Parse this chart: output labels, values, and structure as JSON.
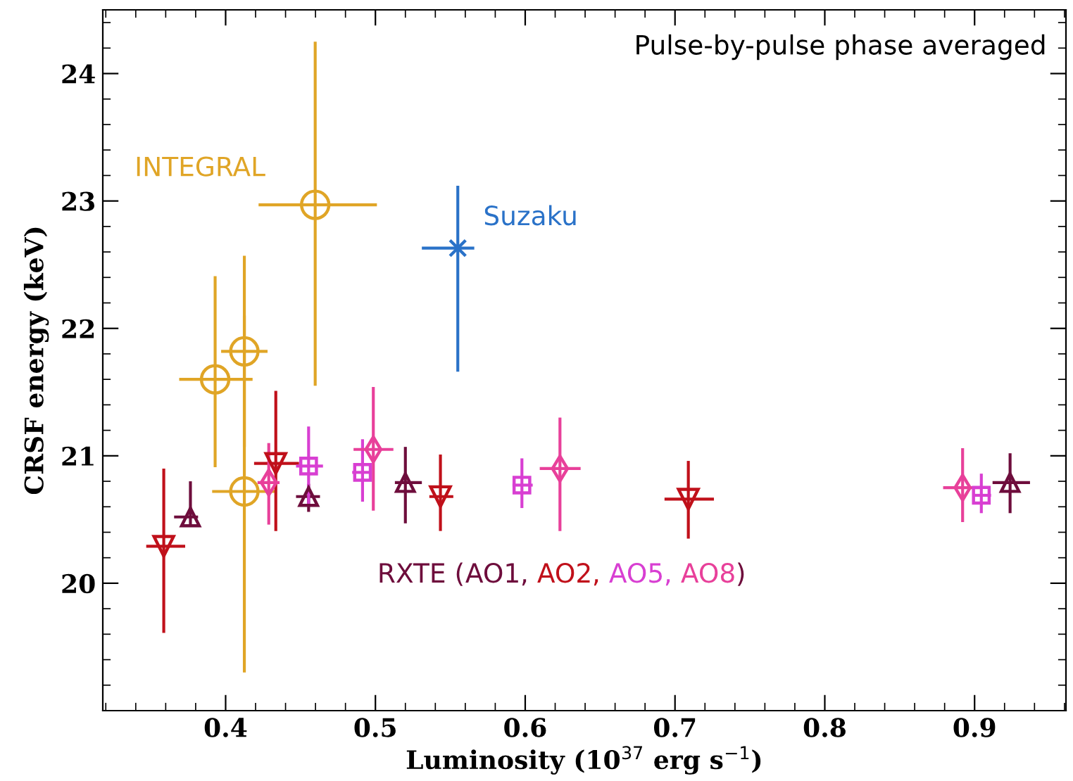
{
  "chart_data": {
    "type": "scatter",
    "xlabel": "Luminosity (10$^{37}$ erg s$^{−1}$)",
    "ylabel": "CRSF energy (keV)",
    "xlim": [
      0.318,
      0.961
    ],
    "ylim": [
      19.0,
      24.5
    ],
    "xticks": [
      0.4,
      0.5,
      0.6,
      0.7,
      0.8,
      0.9
    ],
    "yticks": [
      20,
      21,
      22,
      23,
      24
    ],
    "grid": false,
    "legend": false,
    "annotations": [
      "Pulse-by-pulse phase averaged",
      "RXTE (",
      ", ",
      ")"
    ],
    "series": [
      {
        "name": "INTEGRAL",
        "color": "#e0a526",
        "marker": "circle",
        "x": [
          0.393,
          0.4125,
          0.4598,
          0.4125
        ],
        "values": [
          21.6,
          21.82,
          22.97,
          20.72
        ],
        "xerrors": [
          [
            0.369,
            0.418
          ],
          [
            0.397,
            0.428
          ],
          [
            0.422,
            0.501
          ],
          [
            0.391,
            0.434
          ]
        ],
        "errors": [
          [
            20.91,
            22.41
          ],
          [
            21.07,
            22.57
          ],
          [
            21.55,
            24.25
          ],
          [
            19.3,
            22.1
          ]
        ]
      },
      {
        "name": "Suzaku",
        "color": "#2a72c8",
        "marker": "cross",
        "x": [
          0.555
        ],
        "values": [
          22.63
        ],
        "xerrors": [
          [
            0.531,
            0.566
          ]
        ],
        "errors": [
          [
            21.66,
            23.12
          ]
        ]
      },
      {
        "name": "AO1",
        "color": "#6e0d3c",
        "marker": "triangle",
        "x": [
          0.3765,
          0.4554,
          0.52,
          0.9237
        ],
        "values": [
          20.52,
          20.68,
          20.79,
          20.79
        ],
        "xerrors": [
          [
            0.3656,
            0.3816
          ],
          [
            0.447,
            0.463
          ],
          [
            0.513,
            0.531
          ],
          [
            0.912,
            0.937
          ]
        ],
        "errors": [
          [
            20.46,
            20.8
          ],
          [
            20.56,
            20.78
          ],
          [
            20.47,
            21.07
          ],
          [
            20.55,
            21.02
          ]
        ]
      },
      {
        "name": "AO2",
        "color": "#c0101a",
        "marker": "triangle_down",
        "x": [
          0.3587,
          0.4335,
          0.5434,
          0.7089
        ],
        "values": [
          20.29,
          20.94,
          20.68,
          20.66
        ],
        "xerrors": [
          [
            0.347,
            0.373
          ],
          [
            0.419,
            0.449
          ],
          [
            0.536,
            0.552
          ],
          [
            0.693,
            0.726
          ]
        ],
        "errors": [
          [
            19.61,
            20.9
          ],
          [
            20.41,
            21.51
          ],
          [
            20.41,
            21.01
          ],
          [
            20.35,
            20.96
          ]
        ]
      },
      {
        "name": "AO5",
        "color": "#d83fd2",
        "marker": "square",
        "x": [
          0.4554,
          0.4914,
          0.5978,
          0.9045
        ],
        "values": [
          20.92,
          20.87,
          20.77,
          20.69
        ],
        "xerrors": [
          [
            0.447,
            0.465
          ],
          [
            0.4845,
            0.497
          ],
          [
            0.5915,
            0.605
          ],
          [
            0.8986,
            0.911
          ]
        ],
        "errors": [
          [
            20.6,
            21.23
          ],
          [
            20.64,
            21.13
          ],
          [
            20.59,
            20.98
          ],
          [
            20.55,
            20.86
          ]
        ]
      },
      {
        "name": "AO8",
        "color": "#e8409a",
        "marker": "diamond",
        "x": [
          0.4288,
          0.4986,
          0.6232,
          0.892
        ],
        "values": [
          20.79,
          21.05,
          20.9,
          20.75
        ],
        "xerrors": [
          [
            0.4213,
            0.436
          ],
          [
            0.4854,
            0.512
          ],
          [
            0.6097,
            0.637
          ],
          [
            0.879,
            0.905
          ]
        ],
        "errors": [
          [
            20.46,
            21.1
          ],
          [
            20.57,
            21.54
          ],
          [
            20.41,
            21.3
          ],
          [
            20.48,
            21.06
          ]
        ]
      }
    ]
  }
}
